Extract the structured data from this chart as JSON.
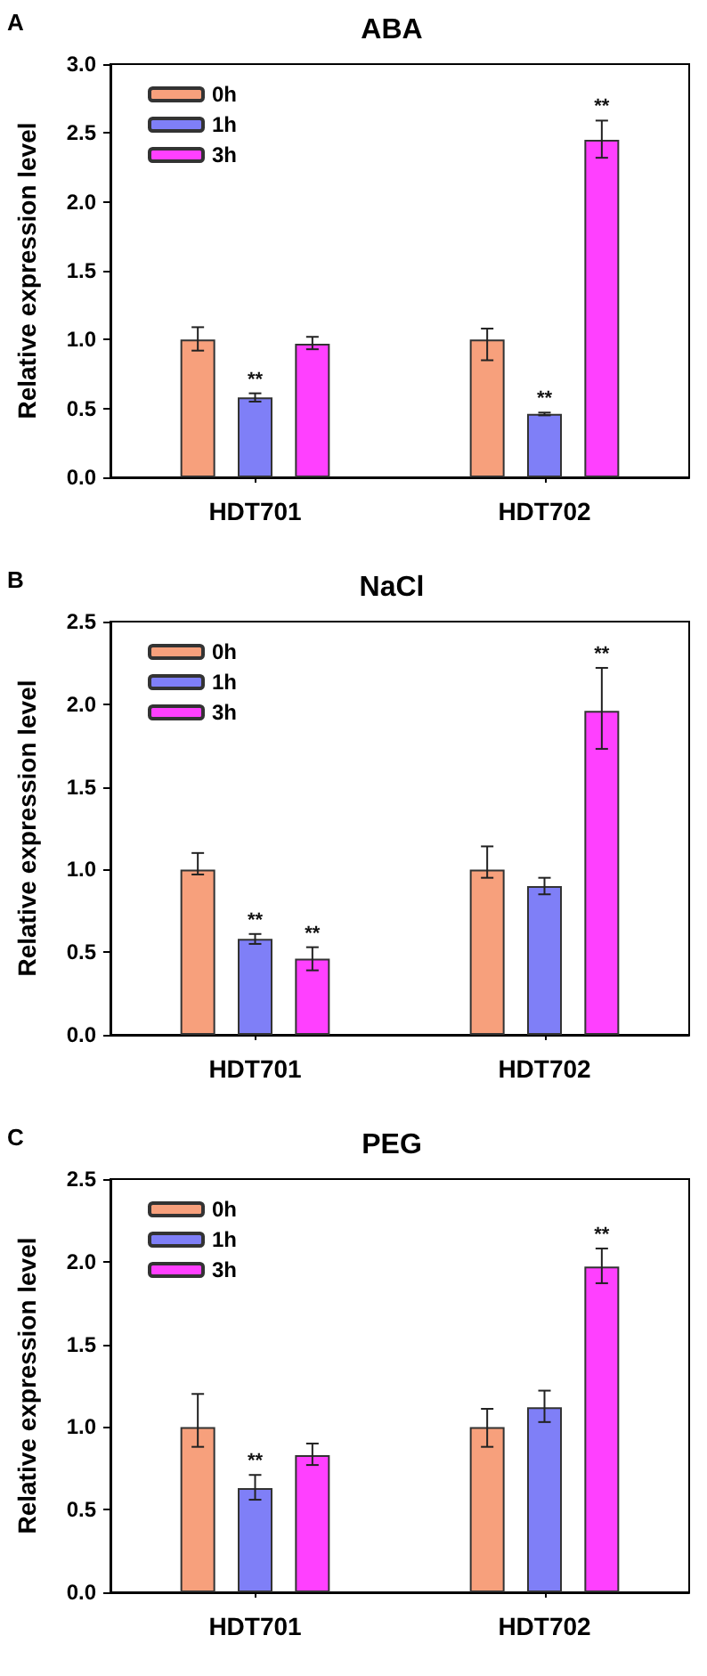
{
  "chart_data": [
    {
      "type": "bar",
      "title": "ABA",
      "annotations": [
        "A"
      ],
      "ylabel": "Relative expression level",
      "categories": [
        "HDT701",
        "HDT702"
      ],
      "legend": "top left",
      "grid": false,
      "ylim": [
        0,
        3
      ],
      "yticks": [
        {
          "value": 0,
          "label": "0.0"
        },
        0.5,
        {
          "value": 1,
          "label": "1.0"
        },
        1.5,
        {
          "value": 2,
          "label": "2.0"
        },
        2.5,
        {
          "value": 3,
          "label": "3.0"
        }
      ],
      "series": [
        {
          "name": "0h",
          "color": "#f7a07c",
          "values": [
            1.0,
            1.0
          ],
          "errors": [
            [
              0.92,
              1.09
            ],
            [
              0.85,
              1.08
            ]
          ]
        },
        {
          "name": "1h",
          "color": "#7f7ff7",
          "values": [
            0.58,
            0.46
          ],
          "errors": [
            [
              0.55,
              0.61
            ],
            [
              0.45,
              0.47
            ]
          ],
          "value_labels": [
            "**",
            "**"
          ]
        },
        {
          "name": "3h",
          "color": "#ff40ff",
          "values": [
            0.97,
            2.45
          ],
          "errors": [
            [
              0.93,
              1.02
            ],
            [
              2.32,
              2.59
            ]
          ],
          "value_labels": [
            null,
            "**"
          ]
        }
      ]
    },
    {
      "type": "bar",
      "title": "NaCl",
      "annotations": [
        "B"
      ],
      "ylabel": "Relative expression level",
      "categories": [
        "HDT701",
        "HDT702"
      ],
      "legend": "top left",
      "grid": false,
      "ylim": [
        0,
        2.5
      ],
      "yticks": [
        {
          "value": 0,
          "label": "0.0"
        },
        0.5,
        {
          "value": 1,
          "label": "1.0"
        },
        1.5,
        {
          "value": 2,
          "label": "2.0"
        },
        2.5
      ],
      "series": [
        {
          "name": "0h",
          "color": "#f7a07c",
          "values": [
            1.0,
            1.0
          ],
          "errors": [
            [
              0.97,
              1.1
            ],
            [
              0.95,
              1.14
            ]
          ]
        },
        {
          "name": "1h",
          "color": "#7f7ff7",
          "values": [
            0.58,
            0.9
          ],
          "errors": [
            [
              0.55,
              0.61
            ],
            [
              0.85,
              0.95
            ]
          ],
          "value_labels": [
            "**",
            null
          ]
        },
        {
          "name": "3h",
          "color": "#ff40ff",
          "values": [
            0.46,
            1.96
          ],
          "errors": [
            [
              0.39,
              0.53
            ],
            [
              1.73,
              2.22
            ]
          ],
          "value_labels": [
            "**",
            "**"
          ]
        }
      ]
    },
    {
      "type": "bar",
      "title": "PEG",
      "annotations": [
        "C"
      ],
      "ylabel": "Relative expression level",
      "categories": [
        "HDT701",
        "HDT702"
      ],
      "legend": "top left",
      "grid": false,
      "ylim": [
        0,
        2.5
      ],
      "yticks": [
        {
          "value": 0,
          "label": "0.0"
        },
        0.5,
        {
          "value": 1,
          "label": "1.0"
        },
        1.5,
        {
          "value": 2,
          "label": "2.0"
        },
        2.5
      ],
      "series": [
        {
          "name": "0h",
          "color": "#f7a07c",
          "values": [
            1.0,
            1.0
          ],
          "errors": [
            [
              0.88,
              1.2
            ],
            [
              0.88,
              1.11
            ]
          ]
        },
        {
          "name": "1h",
          "color": "#7f7ff7",
          "values": [
            0.63,
            1.12
          ],
          "errors": [
            [
              0.56,
              0.71
            ],
            [
              1.03,
              1.22
            ]
          ],
          "value_labels": [
            "**",
            null
          ]
        },
        {
          "name": "3h",
          "color": "#ff40ff",
          "values": [
            0.83,
            1.97
          ],
          "errors": [
            [
              0.77,
              0.9
            ],
            [
              1.87,
              2.08
            ]
          ],
          "value_labels": [
            null,
            "**"
          ]
        }
      ]
    }
  ]
}
